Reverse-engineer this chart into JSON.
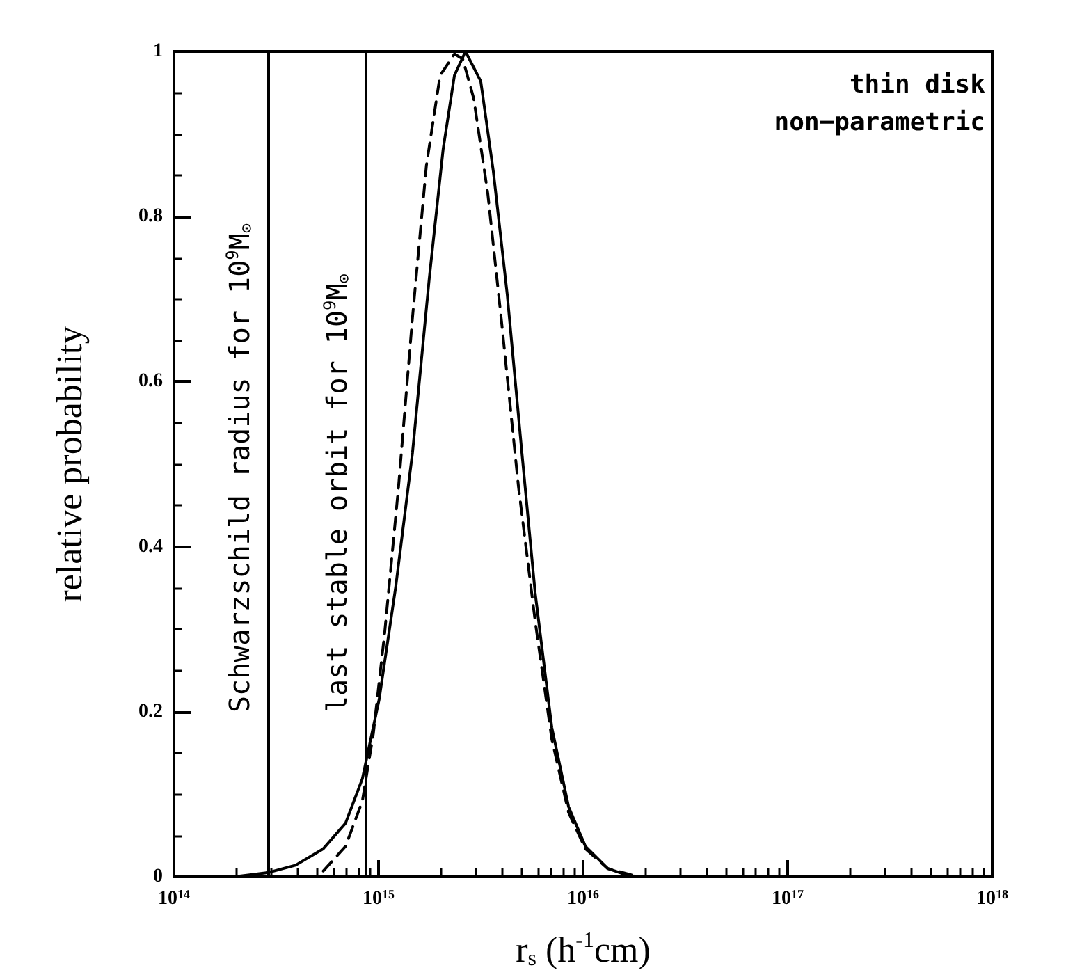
{
  "chart_data": {
    "type": "line",
    "xlabel": "r$_{s}$ (h$^{-1}$cm)",
    "ylabel": "relative probability",
    "log": "x",
    "grid": false,
    "marker": "none",
    "annotations": [
      "thin disk",
      "non−parametric"
    ],
    "xlim": [
      100000000000000.0,
      1e+18
    ],
    "xticks": [
      {
        "value": 100000000000000.0,
        "label": "10$^{14}$"
      },
      {
        "value": 1000000000000000.0,
        "label": "10$^{15}$"
      },
      {
        "value": 1e+16,
        "label": "10$^{16}$"
      },
      {
        "value": 1e+17,
        "label": "10$^{17}$"
      },
      {
        "value": 1e+18,
        "label": "10$^{18}$"
      }
    ],
    "ylim": [
      0,
      1
    ],
    "yticks": [
      0,
      0.2,
      0.4,
      0.6,
      0.8,
      1
    ],
    "ref_lines": [
      {
        "axis": "x",
        "value": 290000000000000.0,
        "label": "Schwarzschild radius for 10$^{9}$M$_{⊙}$",
        "color": "#000000",
        "line_style": "solid"
      },
      {
        "axis": "x",
        "value": 870000000000000.0,
        "label": "last stable orbit for 10$^{9}$M$_{⊙}$",
        "color": "#000000",
        "line_style": "solid"
      }
    ],
    "series": [
      {
        "color": "#000000",
        "line_style": "solid",
        "x": [
          197000000000000.0,
          287000000000000.0,
          393000000000000.0,
          537000000000000.0,
          690000000000000.0,
          834000000000000.0,
          1007000000000000.0,
          1213000000000000.0,
          1466000000000000.0,
          1770000000000000.0,
          2070000000000000.0,
          2350000000000000.0,
          2660000000000000.0,
          3160000000000000.0,
          3640000000000000.0,
          4260000000000000.0,
          4990000000000000.0,
          5830000000000000.0,
          7030000000000000.0,
          8490000000000000.0,
          1.026e+16,
          1.32e+16,
          1.69e+16,
          2.32e+16
        ],
        "values": [
          0,
          0.005,
          0.014,
          0.034,
          0.065,
          0.119,
          0.215,
          0.351,
          0.514,
          0.725,
          0.882,
          0.971,
          1.0,
          0.964,
          0.855,
          0.705,
          0.521,
          0.344,
          0.181,
          0.085,
          0.037,
          0.01,
          0.001,
          0
        ]
      },
      {
        "color": "#000000",
        "line_style": "dashed",
        "x": [
          537000000000000.0,
          690000000000000.0,
          834000000000000.0,
          944000000000000.0,
          1072000000000000.0,
          1253000000000000.0,
          1466000000000000.0,
          1714000000000000.0,
          2000000000000000.0,
          2350000000000000.0,
          2580000000000000.0,
          2920000000000000.0,
          3420000000000000.0,
          4000000000000000.0,
          4830000000000000.0,
          5830000000000000.0,
          7030000000000000.0,
          8490000000000000.0,
          1.026e+16,
          1.32e+16,
          1.8e+16,
          2.32e+16
        ],
        "values": [
          0.007,
          0.037,
          0.092,
          0.174,
          0.296,
          0.473,
          0.678,
          0.862,
          0.971,
          0.997,
          0.991,
          0.943,
          0.828,
          0.671,
          0.473,
          0.31,
          0.167,
          0.078,
          0.034,
          0.01,
          0.001,
          0
        ]
      }
    ]
  }
}
